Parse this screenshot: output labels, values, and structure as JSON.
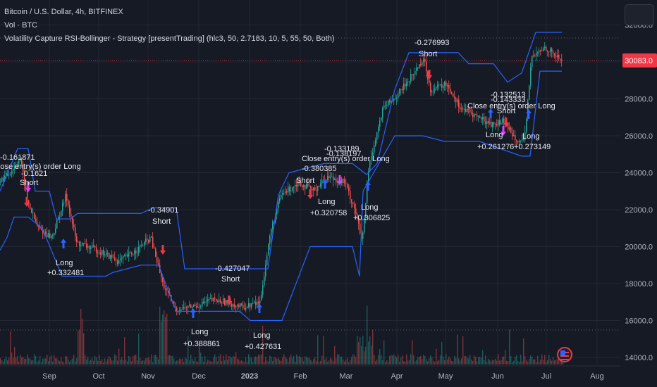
{
  "legend": {
    "symbol_line": "Bitcoin / U.S. Dollar, 4h, BITFINEX",
    "volume_line": "Vol · BTC",
    "strategy_line": "Volatility Capture RSI-Bollinger - Strategy [presentTrading] (hlc3, 50, 2.7183, 10, 5, 55, 50, Both)"
  },
  "price_badge": {
    "value": "30083.0",
    "color": "#f23645"
  },
  "colors": {
    "background": "#161a25",
    "up": "#26a69a",
    "down": "#ef5350",
    "band": "#2962ff",
    "long_arrow": "#2962ff",
    "short_arrow": "#f23645",
    "close_arrow": "#e040fb"
  },
  "icons": [
    "layout-icon",
    "us-flag-icon"
  ],
  "chart_data": {
    "type": "candlestick",
    "symbol": "Bitcoin / U.S. Dollar",
    "timeframe": "4h",
    "exchange": "BITFINEX",
    "ylim": [
      13700,
      32600
    ],
    "y_ticks": [
      "14000.0",
      "16000.0",
      "18000.0",
      "20000.0",
      "22000.0",
      "24000.0",
      "26000.0",
      "28000.0",
      "30000.0",
      "32000.0"
    ],
    "x_ticks": [
      "Sep",
      "Oct",
      "Nov",
      "Dec",
      "2023",
      "Feb",
      "Mar",
      "Apr",
      "May",
      "Jun",
      "Jul",
      "Aug"
    ],
    "price_anchors": [
      {
        "x": 0,
        "y": 23500
      },
      {
        "x": 15,
        "y": 24000
      },
      {
        "x": 30,
        "y": 24800
      },
      {
        "x": 40,
        "y": 22500
      },
      {
        "x": 55,
        "y": 21000
      },
      {
        "x": 75,
        "y": 20500
      },
      {
        "x": 95,
        "y": 22800
      },
      {
        "x": 110,
        "y": 20200
      },
      {
        "x": 140,
        "y": 19800
      },
      {
        "x": 170,
        "y": 19200
      },
      {
        "x": 195,
        "y": 19800
      },
      {
        "x": 215,
        "y": 20500
      },
      {
        "x": 232,
        "y": 18000
      },
      {
        "x": 250,
        "y": 16600
      },
      {
        "x": 280,
        "y": 16800
      },
      {
        "x": 300,
        "y": 17100
      },
      {
        "x": 325,
        "y": 17000
      },
      {
        "x": 345,
        "y": 16700
      },
      {
        "x": 370,
        "y": 17000
      },
      {
        "x": 385,
        "y": 20800
      },
      {
        "x": 400,
        "y": 22800
      },
      {
        "x": 425,
        "y": 23500
      },
      {
        "x": 445,
        "y": 23000
      },
      {
        "x": 465,
        "y": 23800
      },
      {
        "x": 490,
        "y": 23500
      },
      {
        "x": 505,
        "y": 22000
      },
      {
        "x": 515,
        "y": 20200
      },
      {
        "x": 525,
        "y": 24500
      },
      {
        "x": 545,
        "y": 27500
      },
      {
        "x": 565,
        "y": 28200
      },
      {
        "x": 590,
        "y": 29500
      },
      {
        "x": 602,
        "y": 30200
      },
      {
        "x": 612,
        "y": 28500
      },
      {
        "x": 635,
        "y": 28800
      },
      {
        "x": 655,
        "y": 27500
      },
      {
        "x": 680,
        "y": 27000
      },
      {
        "x": 700,
        "y": 26600
      },
      {
        "x": 715,
        "y": 26800
      },
      {
        "x": 735,
        "y": 25800
      },
      {
        "x": 745,
        "y": 25600
      },
      {
        "x": 755,
        "y": 30200
      },
      {
        "x": 775,
        "y": 30800
      },
      {
        "x": 797,
        "y": 30100
      }
    ],
    "upper_band": [
      {
        "x": 0,
        "y": 23000
      },
      {
        "x": 25,
        "y": 25300
      },
      {
        "x": 40,
        "y": 25300
      },
      {
        "x": 50,
        "y": 23000
      },
      {
        "x": 70,
        "y": 23000
      },
      {
        "x": 80,
        "y": 21500
      },
      {
        "x": 100,
        "y": 21500
      },
      {
        "x": 110,
        "y": 21800
      },
      {
        "x": 200,
        "y": 21800
      },
      {
        "x": 218,
        "y": 22100
      },
      {
        "x": 250,
        "y": 22100
      },
      {
        "x": 262,
        "y": 18800
      },
      {
        "x": 320,
        "y": 18800
      },
      {
        "x": 330,
        "y": 18800
      },
      {
        "x": 380,
        "y": 18800
      },
      {
        "x": 395,
        "y": 22800
      },
      {
        "x": 410,
        "y": 24000
      },
      {
        "x": 460,
        "y": 24500
      },
      {
        "x": 500,
        "y": 24500
      },
      {
        "x": 520,
        "y": 23900
      },
      {
        "x": 535,
        "y": 24500
      },
      {
        "x": 560,
        "y": 28500
      },
      {
        "x": 580,
        "y": 30500
      },
      {
        "x": 615,
        "y": 30500
      },
      {
        "x": 650,
        "y": 30500
      },
      {
        "x": 665,
        "y": 29900
      },
      {
        "x": 700,
        "y": 29900
      },
      {
        "x": 720,
        "y": 28900
      },
      {
        "x": 740,
        "y": 29400
      },
      {
        "x": 760,
        "y": 31600
      },
      {
        "x": 797,
        "y": 31600
      }
    ],
    "lower_band": [
      {
        "x": 0,
        "y": 19800
      },
      {
        "x": 10,
        "y": 20500
      },
      {
        "x": 20,
        "y": 21600
      },
      {
        "x": 40,
        "y": 21600
      },
      {
        "x": 60,
        "y": 21000
      },
      {
        "x": 88,
        "y": 18400
      },
      {
        "x": 150,
        "y": 18400
      },
      {
        "x": 160,
        "y": 18600
      },
      {
        "x": 200,
        "y": 19000
      },
      {
        "x": 225,
        "y": 19000
      },
      {
        "x": 250,
        "y": 16500
      },
      {
        "x": 290,
        "y": 16500
      },
      {
        "x": 340,
        "y": 16500
      },
      {
        "x": 355,
        "y": 16000
      },
      {
        "x": 400,
        "y": 16000
      },
      {
        "x": 440,
        "y": 20000
      },
      {
        "x": 500,
        "y": 20000
      },
      {
        "x": 510,
        "y": 18400
      },
      {
        "x": 515,
        "y": 23000
      },
      {
        "x": 560,
        "y": 26000
      },
      {
        "x": 600,
        "y": 26000
      },
      {
        "x": 630,
        "y": 25700
      },
      {
        "x": 680,
        "y": 25700
      },
      {
        "x": 740,
        "y": 24900
      },
      {
        "x": 752,
        "y": 24900
      },
      {
        "x": 766,
        "y": 29500
      },
      {
        "x": 797,
        "y": 29500
      }
    ],
    "trade_labels": [
      {
        "x": 0,
        "y": 227,
        "text": "-0.161871"
      },
      {
        "x": -10,
        "y": 240,
        "text": "Close entry(s) order Long"
      },
      {
        "x": 30,
        "y": 250,
        "text": "-0.1621"
      },
      {
        "x": 28,
        "y": 263,
        "text": "Short"
      },
      {
        "x": 210,
        "y": 302,
        "text": "-0.34901"
      },
      {
        "x": 216,
        "y": 318,
        "text": "Short"
      },
      {
        "x": 79,
        "y": 377,
        "text": "Long"
      },
      {
        "x": 67,
        "y": 391,
        "text": "+0.332481"
      },
      {
        "x": 305,
        "y": 385,
        "text": "-0.427047"
      },
      {
        "x": 314,
        "y": 400,
        "text": "Short"
      },
      {
        "x": 271,
        "y": 475,
        "text": "Long"
      },
      {
        "x": 260,
        "y": 492,
        "text": "+0.388861"
      },
      {
        "x": 359,
        "y": 480,
        "text": "Long"
      },
      {
        "x": 347,
        "y": 496,
        "text": "+0.427631"
      },
      {
        "x": 460,
        "y": 215,
        "text": "-0.133189"
      },
      {
        "x": 463,
        "y": 222,
        "text": "-0.138197"
      },
      {
        "x": 428,
        "y": 229,
        "text": "Close entry(s) order Long"
      },
      {
        "x": 428,
        "y": 243,
        "text": "-0.380385"
      },
      {
        "x": 420,
        "y": 260,
        "text": "Short"
      },
      {
        "x": 451,
        "y": 290,
        "text": "Long"
      },
      {
        "x": 440,
        "y": 306,
        "text": "+0.320758"
      },
      {
        "x": 512,
        "y": 298,
        "text": "Long"
      },
      {
        "x": 501,
        "y": 313,
        "text": "+0.306825"
      },
      {
        "x": 588,
        "y": 64,
        "text": "-0.276993"
      },
      {
        "x": 594,
        "y": 80,
        "text": "Short"
      },
      {
        "x": 696,
        "y": 138,
        "text": "-0.132513"
      },
      {
        "x": 696,
        "y": 145,
        "text": "-0.143333"
      },
      {
        "x": 663,
        "y": 154,
        "text": "Close entry(s) order Long"
      },
      {
        "x": 705,
        "y": 161,
        "text": "Short"
      },
      {
        "x": 689,
        "y": 195,
        "text": "Long"
      },
      {
        "x": 677,
        "y": 212,
        "text": "+0.261276"
      },
      {
        "x": 741,
        "y": 197,
        "text": "Long"
      },
      {
        "x": 729,
        "y": 212,
        "text": "+0.273149"
      }
    ],
    "signals": [
      {
        "x": 38,
        "y": 285,
        "dir": "down",
        "kind": "short"
      },
      {
        "x": 40,
        "y": 264,
        "dir": "down",
        "kind": "close"
      },
      {
        "x": 90,
        "y": 348,
        "dir": "up",
        "kind": "long"
      },
      {
        "x": 231,
        "y": 353,
        "dir": "down",
        "kind": "short"
      },
      {
        "x": 274,
        "y": 447,
        "dir": "up",
        "kind": "long"
      },
      {
        "x": 325,
        "y": 425,
        "dir": "down",
        "kind": "short"
      },
      {
        "x": 368,
        "y": 440,
        "dir": "up",
        "kind": "long"
      },
      {
        "x": 440,
        "y": 274,
        "dir": "down",
        "kind": "short"
      },
      {
        "x": 461,
        "y": 263,
        "dir": "up",
        "kind": "long"
      },
      {
        "x": 482,
        "y": 254,
        "dir": "down",
        "kind": "close"
      },
      {
        "x": 522,
        "y": 266,
        "dir": "up",
        "kind": "long"
      },
      {
        "x": 609,
        "y": 104,
        "dir": "down",
        "kind": "short"
      },
      {
        "x": 696,
        "y": 163,
        "dir": "up",
        "kind": "long"
      },
      {
        "x": 714,
        "y": 184,
        "dir": "down",
        "kind": "close"
      },
      {
        "x": 718,
        "y": 172,
        "dir": "down",
        "kind": "short"
      },
      {
        "x": 750,
        "y": 164,
        "dir": "up",
        "kind": "long"
      }
    ]
  }
}
